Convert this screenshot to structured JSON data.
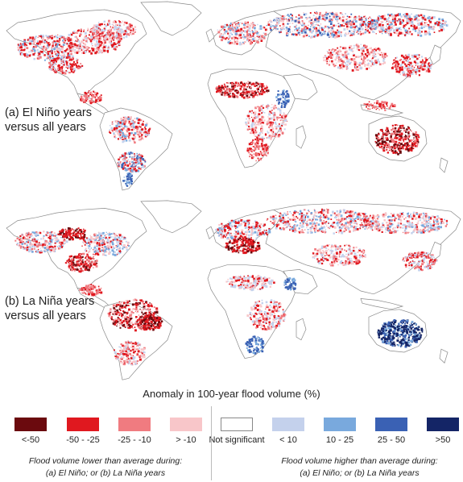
{
  "panels": [
    {
      "id": "a",
      "label_line1": "(a) El Niño years",
      "label_line2": "versus all years"
    },
    {
      "id": "b",
      "label_line1": "(b) La Niña years",
      "label_line2": "versus all years"
    }
  ],
  "legend": {
    "title": "Anomaly in 100-year flood volume (%)",
    "items": [
      {
        "label": "<-50",
        "color": "#6b0a0e"
      },
      {
        "label": "-50 - -25",
        "color": "#e0181f"
      },
      {
        "label": "-25 - -10",
        "color": "#f07b80"
      },
      {
        "label": "> -10",
        "color": "#f8c6c9"
      },
      {
        "label": "Not significant",
        "color": "#ffffff"
      },
      {
        "label": "< 10",
        "color": "#c4d1ec"
      },
      {
        "label": "10 - 25",
        "color": "#79a9dd"
      },
      {
        "label": "25 - 50",
        "color": "#3a61b4"
      },
      {
        "label": ">50",
        "color": "#142566"
      }
    ],
    "caption_lower_line1": "Flood volume lower than average during:",
    "caption_lower_line2": "(a) El Niño; or (b) La Niña years",
    "caption_higher_line1": "Flood volume higher than average during:",
    "caption_higher_line2": "(a) El Niño; or (b) La Niña years"
  },
  "colors": {
    "land": "#ffffff",
    "land_outline": "#8a8a8a",
    "ocean": "#ffffff",
    "greenland": "#ffffff"
  }
}
